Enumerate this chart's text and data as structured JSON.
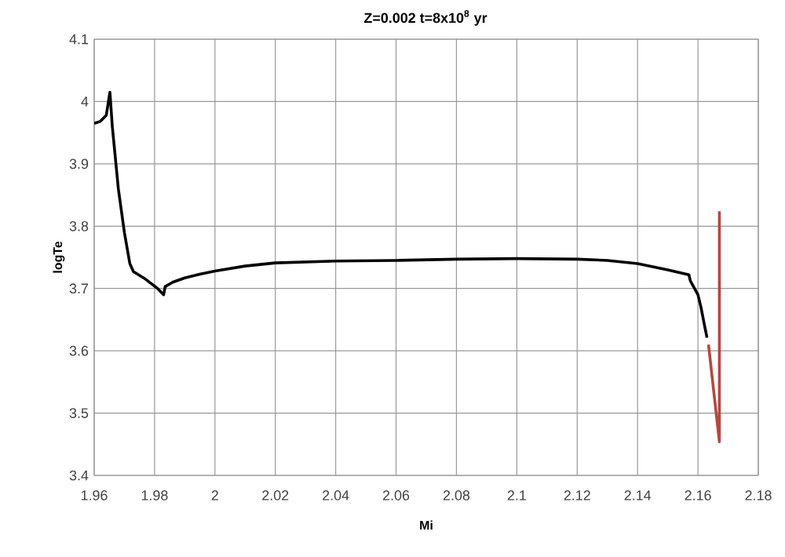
{
  "chart_data": {
    "type": "line",
    "title": "**Z=0.002    t=8x10$^{8}$ yr**",
    "xlabel": "Mi",
    "ylabel": "logTe",
    "xlim": [
      1.96,
      2.18
    ],
    "xticks": [
      1.96,
      1.98,
      2,
      2.02,
      2.04,
      2.06,
      2.08,
      2.1,
      2.12,
      2.14,
      2.16,
      2.18
    ],
    "ylim": [
      3.4,
      4.1
    ],
    "yticks": [
      3.4,
      3.5,
      3.6,
      3.7,
      3.8,
      3.9,
      4,
      4.1
    ],
    "grid": true,
    "marker": "none",
    "line_style": "solid",
    "series": [
      {
        "color": "#000000",
        "x": [
          1.96,
          1.962,
          1.964,
          1.9652,
          1.966,
          1.968,
          1.97,
          1.9718,
          1.973,
          1.977,
          1.981,
          1.983,
          1.9835,
          1.986,
          1.99,
          1.995,
          2.0,
          2.01,
          2.02,
          2.04,
          2.06,
          2.08,
          2.1,
          2.12,
          2.13,
          2.14,
          2.15,
          2.157,
          2.1575,
          2.16,
          2.161,
          2.162,
          2.163
        ],
        "values": [
          3.965,
          3.968,
          3.978,
          4.015,
          3.96,
          3.86,
          3.79,
          3.74,
          3.727,
          3.715,
          3.7,
          3.69,
          3.703,
          3.71,
          3.717,
          3.723,
          3.728,
          3.736,
          3.741,
          3.744,
          3.745,
          3.747,
          3.748,
          3.747,
          3.745,
          3.74,
          3.73,
          3.722,
          3.712,
          3.69,
          3.67,
          3.645,
          3.621
        ]
      },
      {
        "color": "#b5473f",
        "x": [
          2.1635,
          2.1671,
          2.1671
        ],
        "values": [
          3.61,
          3.454,
          3.824
        ]
      }
    ]
  }
}
